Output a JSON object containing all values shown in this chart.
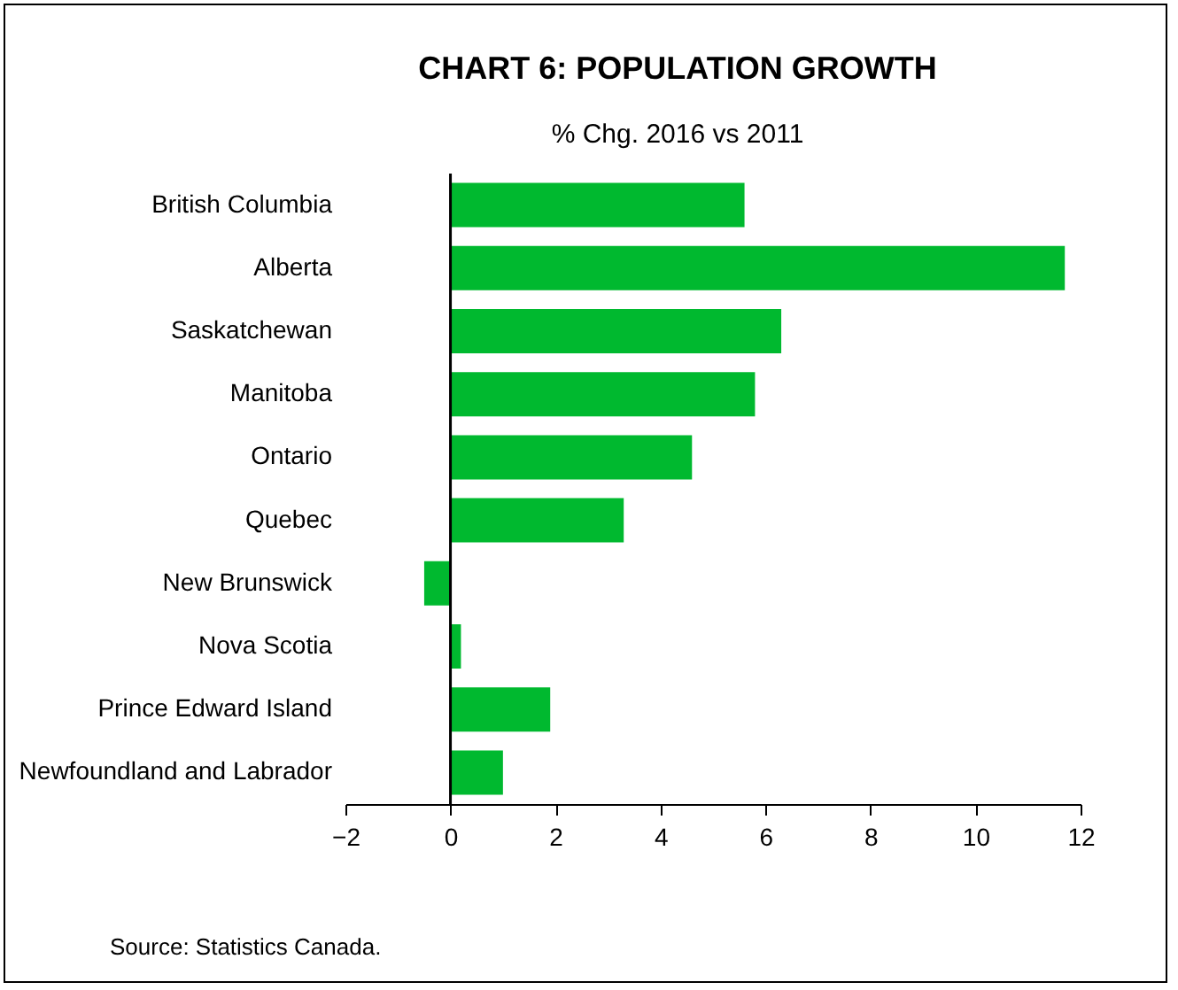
{
  "chart_data": {
    "type": "bar",
    "orientation": "horizontal",
    "title": "CHART 6: POPULATION GROWTH",
    "subtitle": "% Chg. 2016 vs 2011",
    "categories": [
      "British Columbia",
      "Alberta",
      "Saskatchewan",
      "Manitoba",
      "Ontario",
      "Quebec",
      "New Brunswick",
      "Nova Scotia",
      "Prince Edward Island",
      "Newfoundland and Labrador"
    ],
    "values": [
      5.6,
      11.7,
      6.3,
      5.8,
      4.6,
      3.3,
      -0.5,
      0.2,
      1.9,
      1.0
    ],
    "color": "#00b92f",
    "xlim": [
      -2,
      12
    ],
    "xticks": [
      -2,
      0,
      2,
      4,
      6,
      8,
      10,
      12
    ],
    "grid": false,
    "ref_lines": [
      {
        "axis": "x",
        "value": 0,
        "color": "#000000"
      }
    ],
    "annotations": [
      "Source: Statistics Canada."
    ]
  }
}
